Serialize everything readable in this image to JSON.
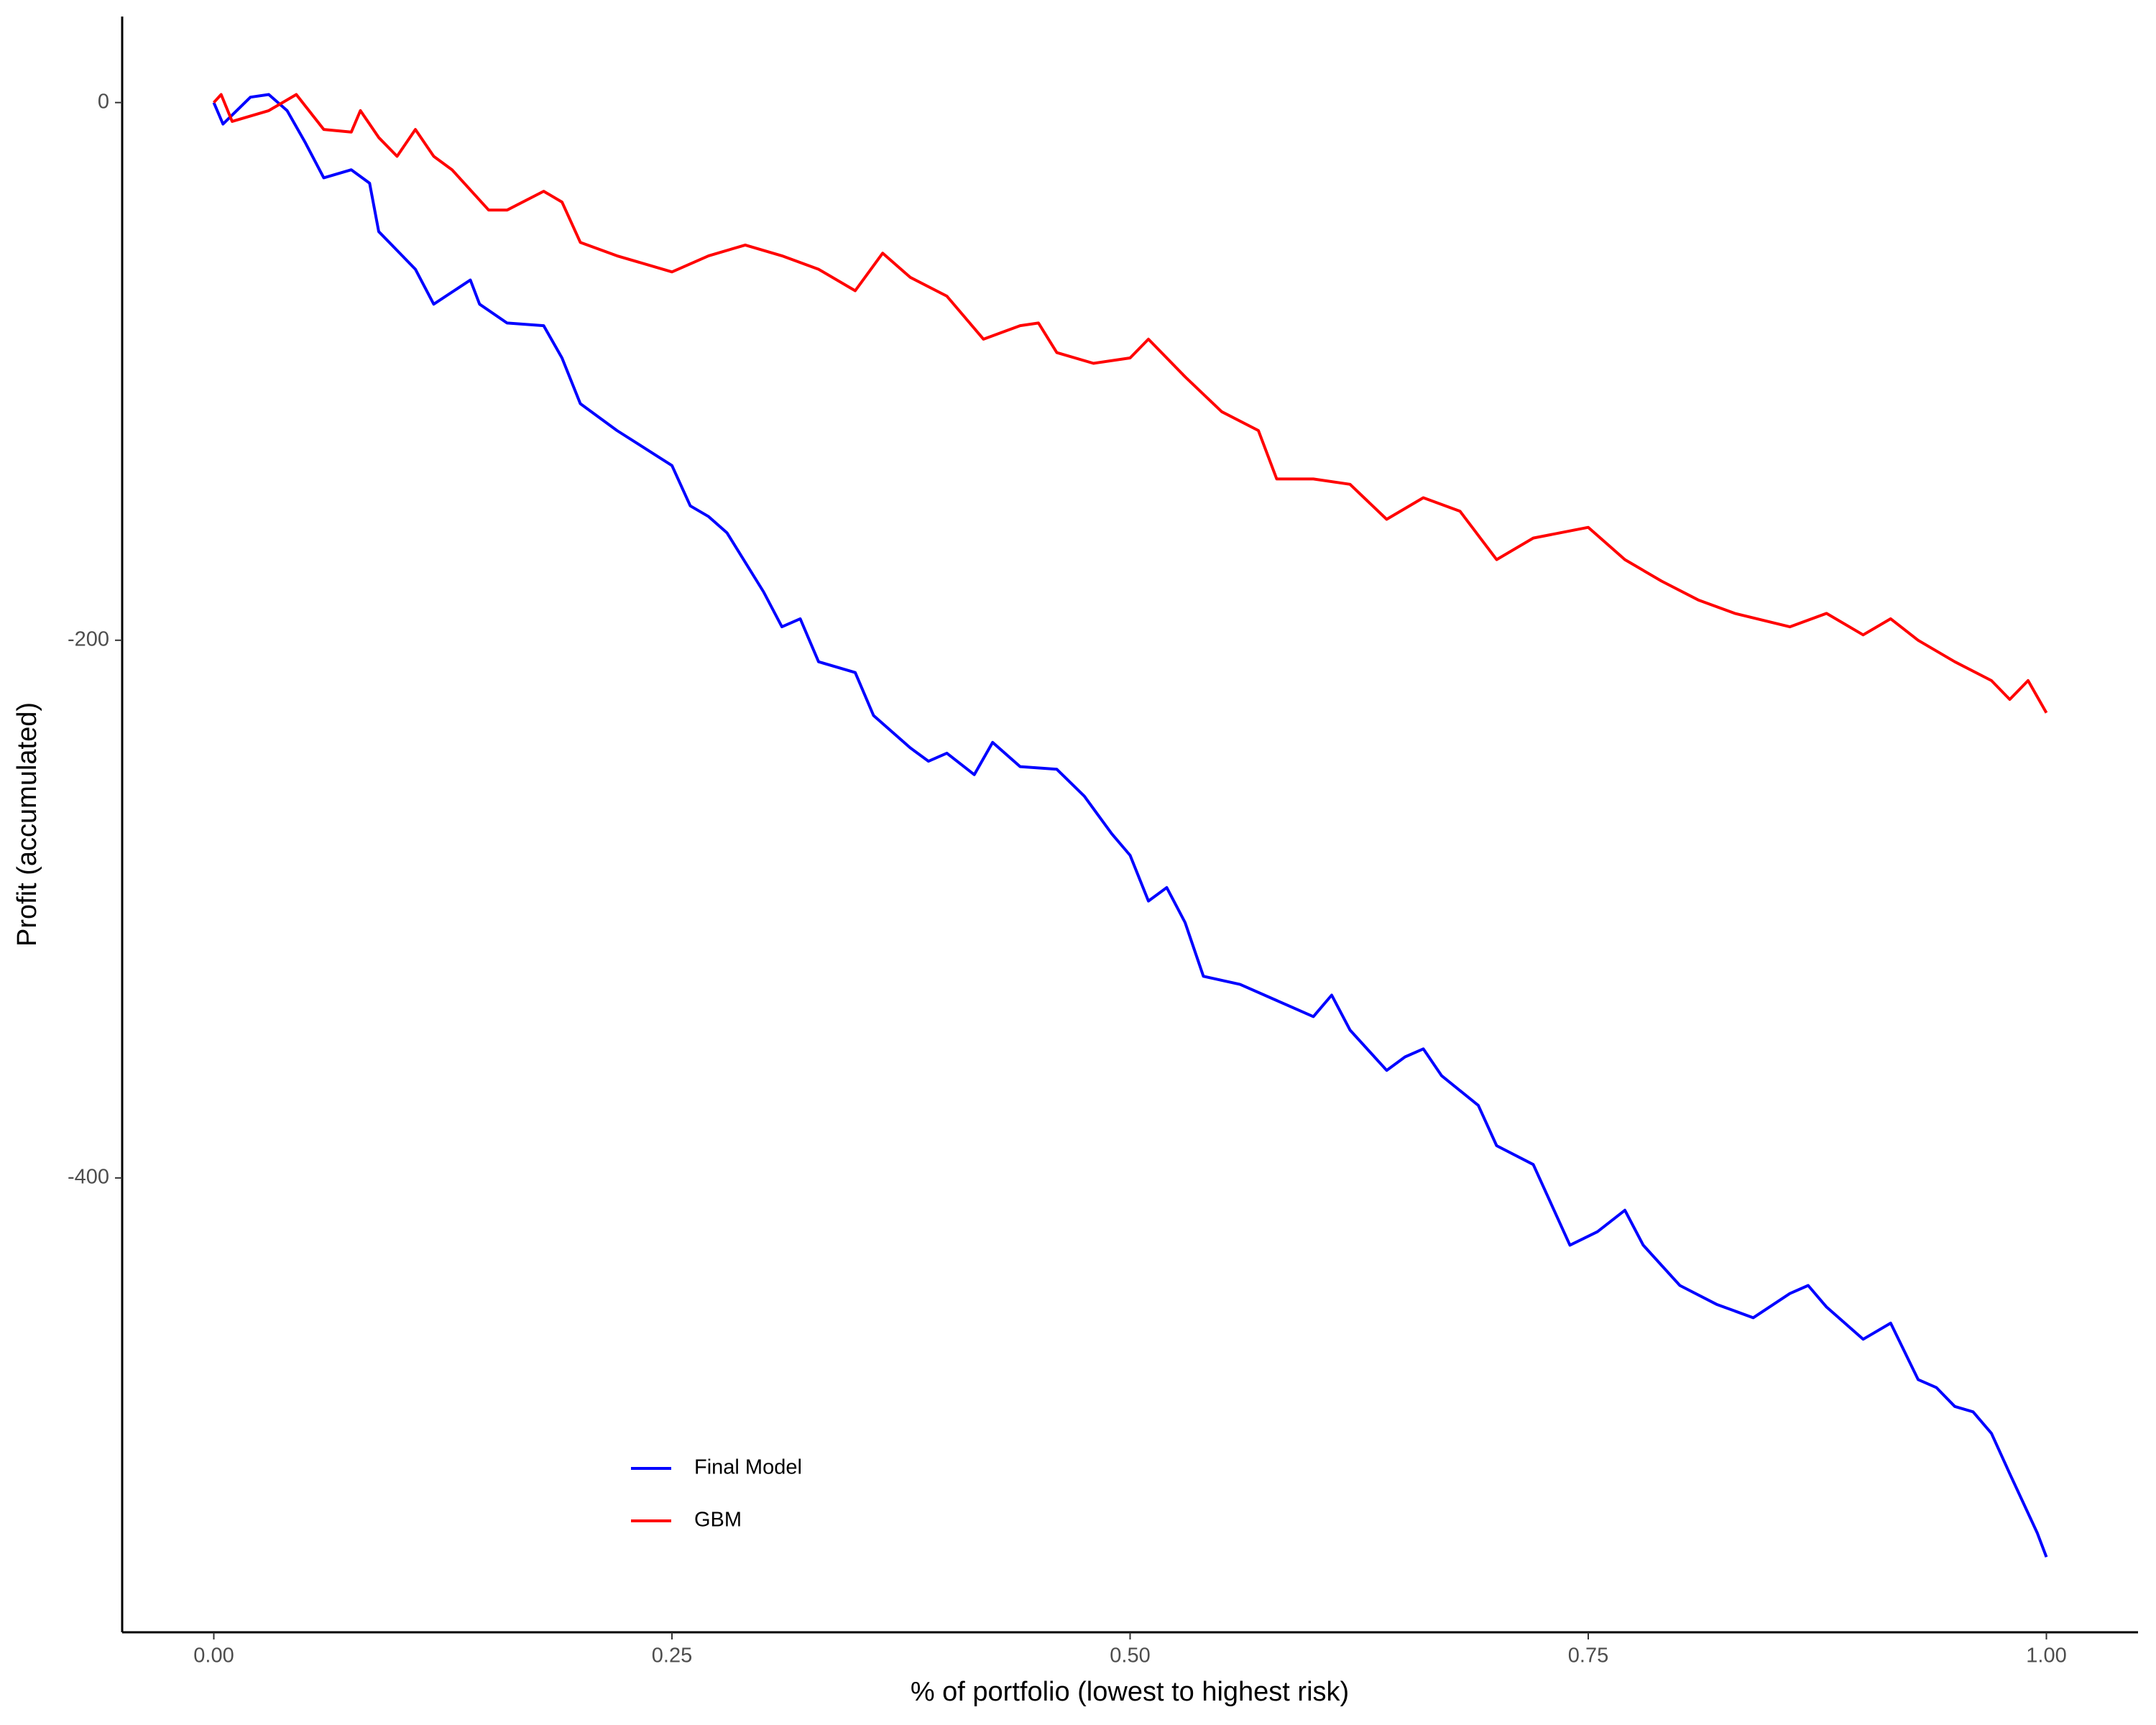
{
  "chart_data": {
    "type": "line",
    "x_label": "% of portfolio (lowest to highest risk)",
    "y_label": "Profit (accumulated)",
    "xlim": [
      -0.05,
      1.05
    ],
    "ylim": [
      -569,
      32
    ],
    "xticks": [
      {
        "value": 0,
        "label": "0.00"
      },
      {
        "value": 0.25,
        "label": "0.25"
      },
      {
        "value": 0.5,
        "label": "0.50"
      },
      {
        "value": 0.75,
        "label": "0.75"
      },
      {
        "value": 1,
        "label": "1.00"
      }
    ],
    "yticks": [
      0,
      -200,
      -400
    ],
    "grid": false,
    "legend_position": "bottom",
    "series": [
      {
        "name": "Final Model",
        "color": "#0000ff",
        "x": [
          0,
          0.005,
          0.02,
          0.03,
          0.04,
          0.05,
          0.06,
          0.075,
          0.085,
          0.09,
          0.1,
          0.11,
          0.12,
          0.14,
          0.145,
          0.16,
          0.18,
          0.19,
          0.2,
          0.22,
          0.25,
          0.26,
          0.27,
          0.28,
          0.3,
          0.31,
          0.32,
          0.33,
          0.35,
          0.36,
          0.38,
          0.39,
          0.4,
          0.415,
          0.425,
          0.44,
          0.46,
          0.475,
          0.49,
          0.5,
          0.51,
          0.52,
          0.53,
          0.54,
          0.56,
          0.58,
          0.6,
          0.61,
          0.62,
          0.64,
          0.65,
          0.66,
          0.67,
          0.69,
          0.7,
          0.72,
          0.73,
          0.74,
          0.755,
          0.77,
          0.78,
          0.8,
          0.82,
          0.84,
          0.86,
          0.87,
          0.88,
          0.9,
          0.915,
          0.93,
          0.94,
          0.95,
          0.96,
          0.97,
          0.98,
          0.995,
          1.0
        ],
        "values": [
          0,
          -8,
          2,
          3,
          -3,
          -15,
          -28,
          -25,
          -30,
          -48,
          -55,
          -62,
          -75,
          -66,
          -75,
          -82,
          -83,
          -95,
          -112,
          -122,
          -135,
          -150,
          -154,
          -160,
          -182,
          -195,
          -192,
          -208,
          -212,
          -228,
          -240,
          -245,
          -242,
          -250,
          -238,
          -247,
          -248,
          -258,
          -272,
          -280,
          -297,
          -292,
          -305,
          -325,
          -328,
          -334,
          -340,
          -332,
          -345,
          -360,
          -355,
          -352,
          -362,
          -373,
          -388,
          -395,
          -410,
          -425,
          -420,
          -412,
          -425,
          -440,
          -447,
          -452,
          -443,
          -440,
          -448,
          -460,
          -454,
          -475,
          -478,
          -485,
          -487,
          -495,
          -510,
          -532,
          -541
        ]
      },
      {
        "name": "GBM",
        "color": "#ff0000",
        "x": [
          0,
          0.004,
          0.01,
          0.03,
          0.045,
          0.06,
          0.075,
          0.08,
          0.09,
          0.1,
          0.11,
          0.12,
          0.13,
          0.15,
          0.16,
          0.18,
          0.19,
          0.2,
          0.22,
          0.25,
          0.27,
          0.29,
          0.31,
          0.33,
          0.35,
          0.365,
          0.38,
          0.4,
          0.42,
          0.44,
          0.45,
          0.46,
          0.48,
          0.5,
          0.51,
          0.53,
          0.55,
          0.57,
          0.58,
          0.6,
          0.62,
          0.64,
          0.66,
          0.68,
          0.7,
          0.72,
          0.75,
          0.77,
          0.79,
          0.81,
          0.83,
          0.86,
          0.88,
          0.9,
          0.915,
          0.93,
          0.95,
          0.97,
          0.98,
          0.99,
          1.0
        ],
        "values": [
          0,
          3,
          -7,
          -3,
          3,
          -10,
          -11,
          -3,
          -13,
          -20,
          -10,
          -20,
          -25,
          -40,
          -40,
          -33,
          -37,
          -52,
          -57,
          -63,
          -57,
          -53,
          -57,
          -62,
          -70,
          -56,
          -65,
          -72,
          -88,
          -83,
          -82,
          -93,
          -97,
          -95,
          -88,
          -102,
          -115,
          -122,
          -140,
          -140,
          -142,
          -155,
          -147,
          -152,
          -170,
          -162,
          -158,
          -170,
          -178,
          -185,
          -190,
          -195,
          -190,
          -198,
          -192,
          -200,
          -208,
          -215,
          -222,
          -215,
          -227
        ]
      }
    ]
  }
}
